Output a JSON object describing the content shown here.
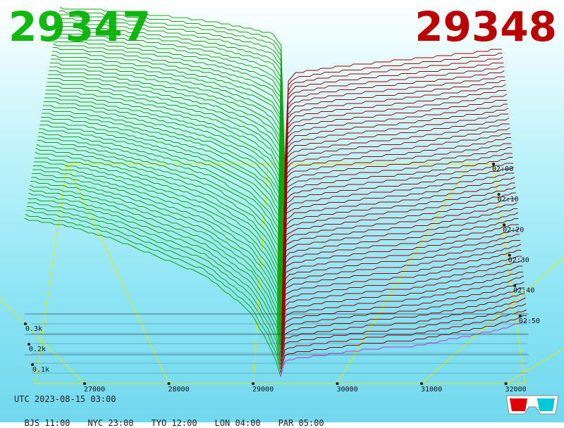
{
  "header": {
    "bid_price": "29347",
    "ask_price": "29348",
    "bid_color": "#11b811",
    "ask_color": "#bb0000"
  },
  "footer": {
    "utc": "UTC 2023-08-15 03:00",
    "zones": [
      "BJS 11:00",
      "NYC 23:00",
      "TYO 12:00",
      "LON 04:00",
      "PAR 05:00"
    ]
  },
  "icons": {
    "stereo_glasses": "3d-glasses-icon"
  },
  "chart_data": {
    "type": "area",
    "subtype": "3d-order-book-depth",
    "title": "",
    "price_axis": {
      "ticks": [
        27000,
        28000,
        29000,
        30000,
        31000,
        32000
      ],
      "labels": [
        "27000",
        "28000",
        "29000",
        "30000",
        "31000",
        "32000"
      ]
    },
    "depth_axis": {
      "ticks": [
        100,
        200,
        300
      ],
      "labels": [
        "0.1k",
        "0.2k",
        "0.3k"
      ]
    },
    "time_axis": {
      "labels": [
        "02:00",
        "02:10",
        "02:20",
        "02:30",
        "02:40",
        "02:50"
      ]
    },
    "grid": true,
    "colors": {
      "bids": "#0fa80f",
      "asks": "#a00000",
      "latest_ask": "#cc33cc",
      "grid": "#e8e800"
    },
    "bids_depth_at_price": {
      "x": [
        26500,
        27000,
        27500,
        28000,
        28500,
        29000,
        29200,
        29300,
        29347
      ],
      "depth_front": [
        310,
        295,
        270,
        235,
        200,
        130,
        70,
        30,
        0
      ],
      "depth_back": [
        430,
        425,
        415,
        405,
        390,
        370,
        360,
        330,
        0
      ]
    },
    "asks_depth_at_price": {
      "x": [
        29348,
        29400,
        29500,
        30000,
        30500,
        31000,
        31500,
        32000,
        32400
      ],
      "depth_front": [
        0,
        30,
        35,
        45,
        55,
        60,
        75,
        90,
        110
      ],
      "depth_back": [
        0,
        240,
        255,
        270,
        280,
        290,
        300,
        310,
        320
      ]
    },
    "snapshots": 55
  }
}
